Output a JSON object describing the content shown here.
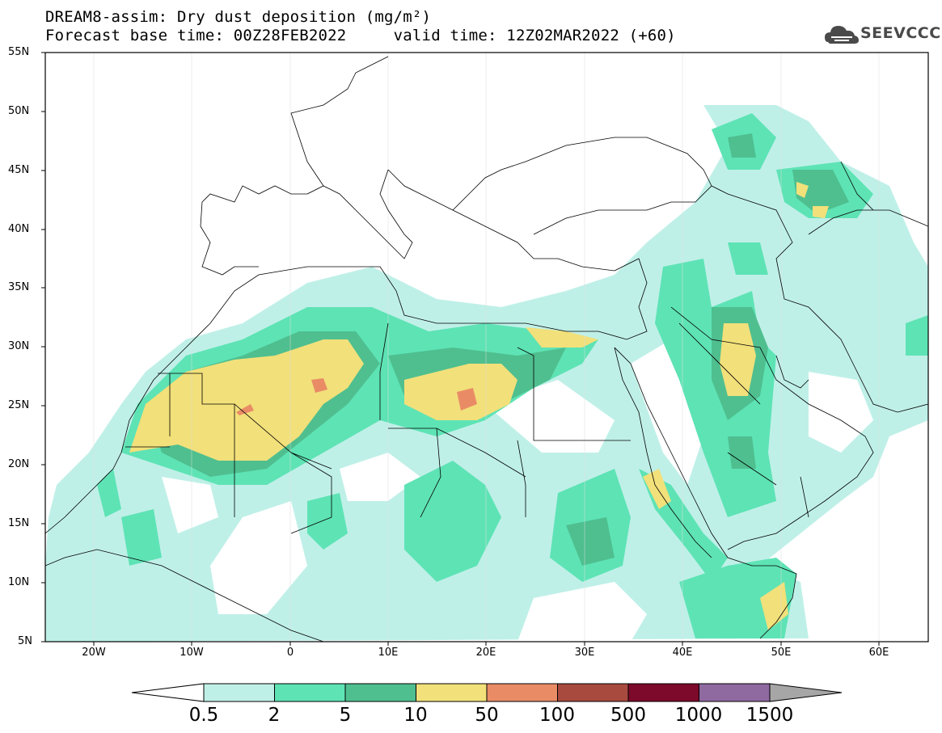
{
  "header": {
    "title_line1": "DREAM8-assim: Dry dust deposition (mg/m²)",
    "title_line2": "Forecast base time: 00Z28FEB2022     valid time: 12Z02MAR2022 (+60)",
    "logo_text": "SEEVCCC"
  },
  "map": {
    "lat_labels": [
      "55N",
      "50N",
      "45N",
      "40N",
      "35N",
      "30N",
      "25N",
      "20N",
      "15N",
      "10N",
      "5N"
    ],
    "lon_labels": [
      "20W",
      "10W",
      "0",
      "10E",
      "20E",
      "30E",
      "40E",
      "50E",
      "60E"
    ],
    "extent": {
      "lon_min": -25,
      "lon_max": 65,
      "lat_min": 5,
      "lat_max": 55
    }
  },
  "colorbar": {
    "labels": [
      "0.5",
      "2",
      "5",
      "10",
      "50",
      "100",
      "500",
      "1000",
      "1500"
    ],
    "colors": [
      "#bff0e8",
      "#5ee3b5",
      "#4fbf8f",
      "#f2e07a",
      "#e98c66",
      "#a84a3e",
      "#7d0a2a",
      "#8f6aa0"
    ],
    "under_color": "#ffffff",
    "over_color": "#a6a6a6"
  }
}
